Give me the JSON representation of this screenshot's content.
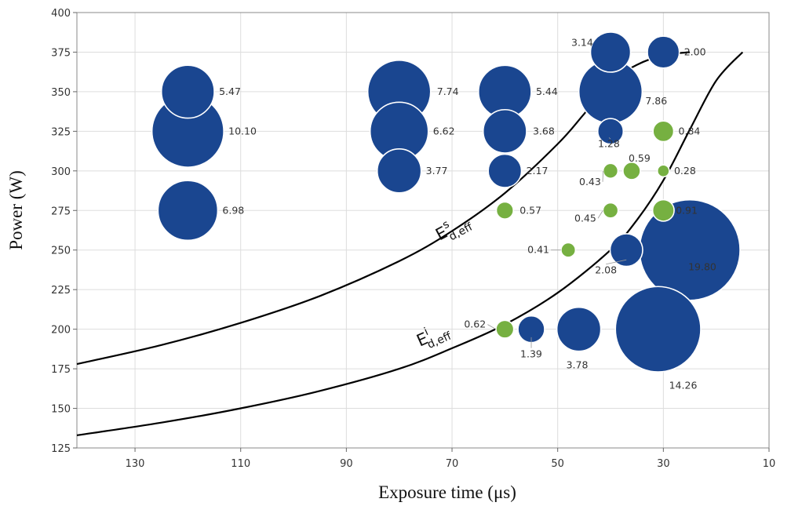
{
  "chart_data": {
    "type": "scatter",
    "variant": "bubble",
    "xlabel": "Exposure time (μs)",
    "ylabel": "Power (W)",
    "xlim": [
      141,
      10
    ],
    "ylim": [
      125,
      400
    ],
    "x_reversed": true,
    "xticks": [
      130,
      110,
      90,
      70,
      50,
      30,
      10
    ],
    "yticks": [
      125,
      150,
      175,
      200,
      225,
      250,
      275,
      300,
      325,
      350,
      375,
      400
    ],
    "grid": true,
    "colors": {
      "blue": "#1a4690",
      "green": "#76b041",
      "bubble_edge": "#ffffff",
      "curve": "#000000"
    },
    "series": [
      {
        "color": "blue",
        "points": [
          {
            "x": 120,
            "y": 350,
            "size": 5.47,
            "label": "5.47"
          },
          {
            "x": 120,
            "y": 325,
            "size": 10.1,
            "label": "10.10"
          },
          {
            "x": 120,
            "y": 275,
            "size": 6.98,
            "label": "6.98"
          },
          {
            "x": 80,
            "y": 350,
            "size": 7.74,
            "label": "7.74"
          },
          {
            "x": 80,
            "y": 325,
            "size": 6.62,
            "label": "6.62"
          },
          {
            "x": 80,
            "y": 300,
            "size": 3.77,
            "label": "3.77"
          },
          {
            "x": 60,
            "y": 350,
            "size": 5.44,
            "label": "5.44"
          },
          {
            "x": 60,
            "y": 325,
            "size": 3.68,
            "label": "3.68"
          },
          {
            "x": 60,
            "y": 300,
            "size": 2.17,
            "label": "2.17"
          },
          {
            "x": 40,
            "y": 375,
            "size": 3.14,
            "label": "3.14"
          },
          {
            "x": 30,
            "y": 375,
            "size": 2.0,
            "label": "2.00"
          },
          {
            "x": 40,
            "y": 350,
            "size": 7.86,
            "label": "7.86"
          },
          {
            "x": 40,
            "y": 325,
            "size": 1.28,
            "label": "1.28"
          },
          {
            "x": 37,
            "y": 250,
            "size": 2.08,
            "label": "2.08"
          },
          {
            "x": 25,
            "y": 250,
            "size": 19.8,
            "label": "19.80"
          },
          {
            "x": 31,
            "y": 200,
            "size": 14.26,
            "label": "14.26"
          },
          {
            "x": 46,
            "y": 200,
            "size": 3.78,
            "label": "3.78"
          },
          {
            "x": 55,
            "y": 200,
            "size": 1.39,
            "label": "1.39"
          }
        ]
      },
      {
        "color": "green",
        "points": [
          {
            "x": 30,
            "y": 325,
            "size": 0.84,
            "label": "0.84"
          },
          {
            "x": 36,
            "y": 300,
            "size": 0.59,
            "label": "0.59"
          },
          {
            "x": 40,
            "y": 300,
            "size": 0.43,
            "label": "0.43"
          },
          {
            "x": 30,
            "y": 300,
            "size": 0.28,
            "label": "0.28"
          },
          {
            "x": 60,
            "y": 275,
            "size": 0.57,
            "label": "0.57"
          },
          {
            "x": 40,
            "y": 275,
            "size": 0.45,
            "label": "0.45"
          },
          {
            "x": 30,
            "y": 275,
            "size": 0.91,
            "label": "0.91"
          },
          {
            "x": 48,
            "y": 250,
            "size": 0.41,
            "label": "0.41"
          },
          {
            "x": 60,
            "y": 200,
            "size": 0.62,
            "label": "0.62"
          }
        ]
      }
    ],
    "curves": [
      {
        "name": "E^s_d,eff",
        "label_main": "E",
        "label_sup": "s",
        "label_sub": "d,eff",
        "points": [
          [
            141,
            178
          ],
          [
            125,
            190
          ],
          [
            110,
            204
          ],
          [
            95,
            221
          ],
          [
            80,
            243
          ],
          [
            70,
            262
          ],
          [
            60,
            286
          ],
          [
            50,
            317
          ],
          [
            45,
            336
          ],
          [
            40,
            356
          ],
          [
            35,
            367
          ],
          [
            30,
            373
          ],
          [
            25,
            375
          ]
        ]
      },
      {
        "name": "E^i_d,eff",
        "label_main": "E",
        "label_sup": "i",
        "label_sub": "d,eff",
        "points": [
          [
            141,
            133
          ],
          [
            125,
            141
          ],
          [
            110,
            150
          ],
          [
            95,
            161
          ],
          [
            80,
            175
          ],
          [
            70,
            188
          ],
          [
            60,
            203
          ],
          [
            50,
            223
          ],
          [
            40,
            250
          ],
          [
            35,
            269
          ],
          [
            30,
            294
          ],
          [
            25,
            326
          ],
          [
            20,
            357
          ],
          [
            15,
            375
          ]
        ]
      }
    ]
  }
}
